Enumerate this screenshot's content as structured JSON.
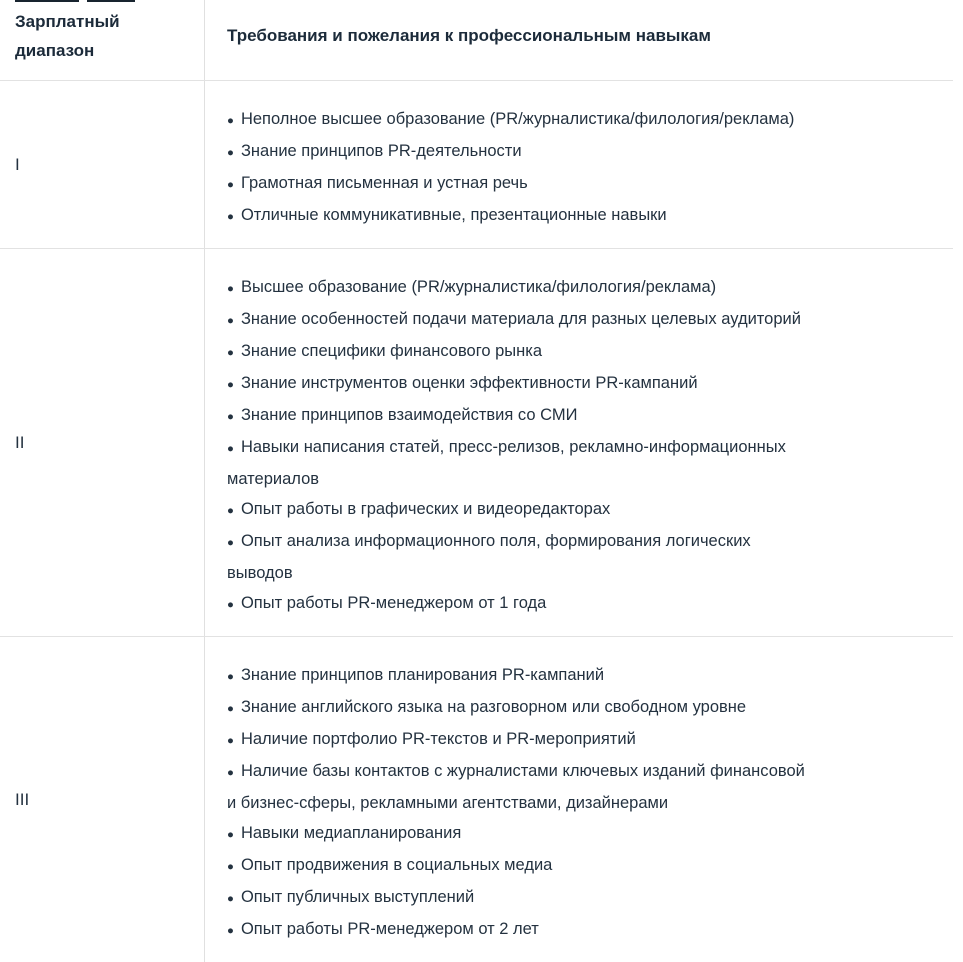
{
  "glyphs": {
    "bullet": "●"
  },
  "colors": {
    "text": "#243240",
    "header_text": "#1c2b3a",
    "border": "#e2e2e2",
    "background": "#ffffff"
  },
  "table": {
    "columns": [
      {
        "label": "Зарплатный диапазон"
      },
      {
        "label": "Требования и пожелания к профессиональным навыкам"
      }
    ],
    "rows": [
      {
        "range": "I",
        "items": [
          "Неполное высшее образование (PR/журналистика/филология/реклама)",
          "Знание принципов PR-деятельности",
          "Грамотная письменная и устная речь",
          "Отличные коммуникативные, презентационные навыки"
        ]
      },
      {
        "range": "II",
        "items": [
          "Высшее образование (PR/журналистика/филология/реклама)",
          "Знание особенностей подачи материала для разных целевых аудиторий",
          "Знание специфики финансового рынка",
          "Знание инструментов оценки эффективности PR-кампаний",
          "Знание принципов взаимодействия со СМИ",
          "Навыки написания статей, пресс-релизов, рекламно-информационных\nматериалов",
          "Опыт работы в графических и видеоредакторах",
          "Опыт анализа информационного поля, формирования логических\nвыводов",
          "Опыт работы PR-менеджером от 1 года"
        ]
      },
      {
        "range": "III",
        "items": [
          "Знание принципов планирования PR-кампаний",
          "Знание английского языка на разговорном или свободном уровне",
          "Наличие портфолио PR-текстов и PR-мероприятий",
          "Наличие базы контактов с журналистами ключевых изданий финансовой\nи бизнес-сферы, рекламными агентствами, дизайнерами",
          "Навыки медиапланирования",
          "Опыт продвижения в социальных медиа",
          "Опыт публичных выступлений",
          "Опыт работы PR-менеджером от 2 лет"
        ]
      }
    ]
  }
}
